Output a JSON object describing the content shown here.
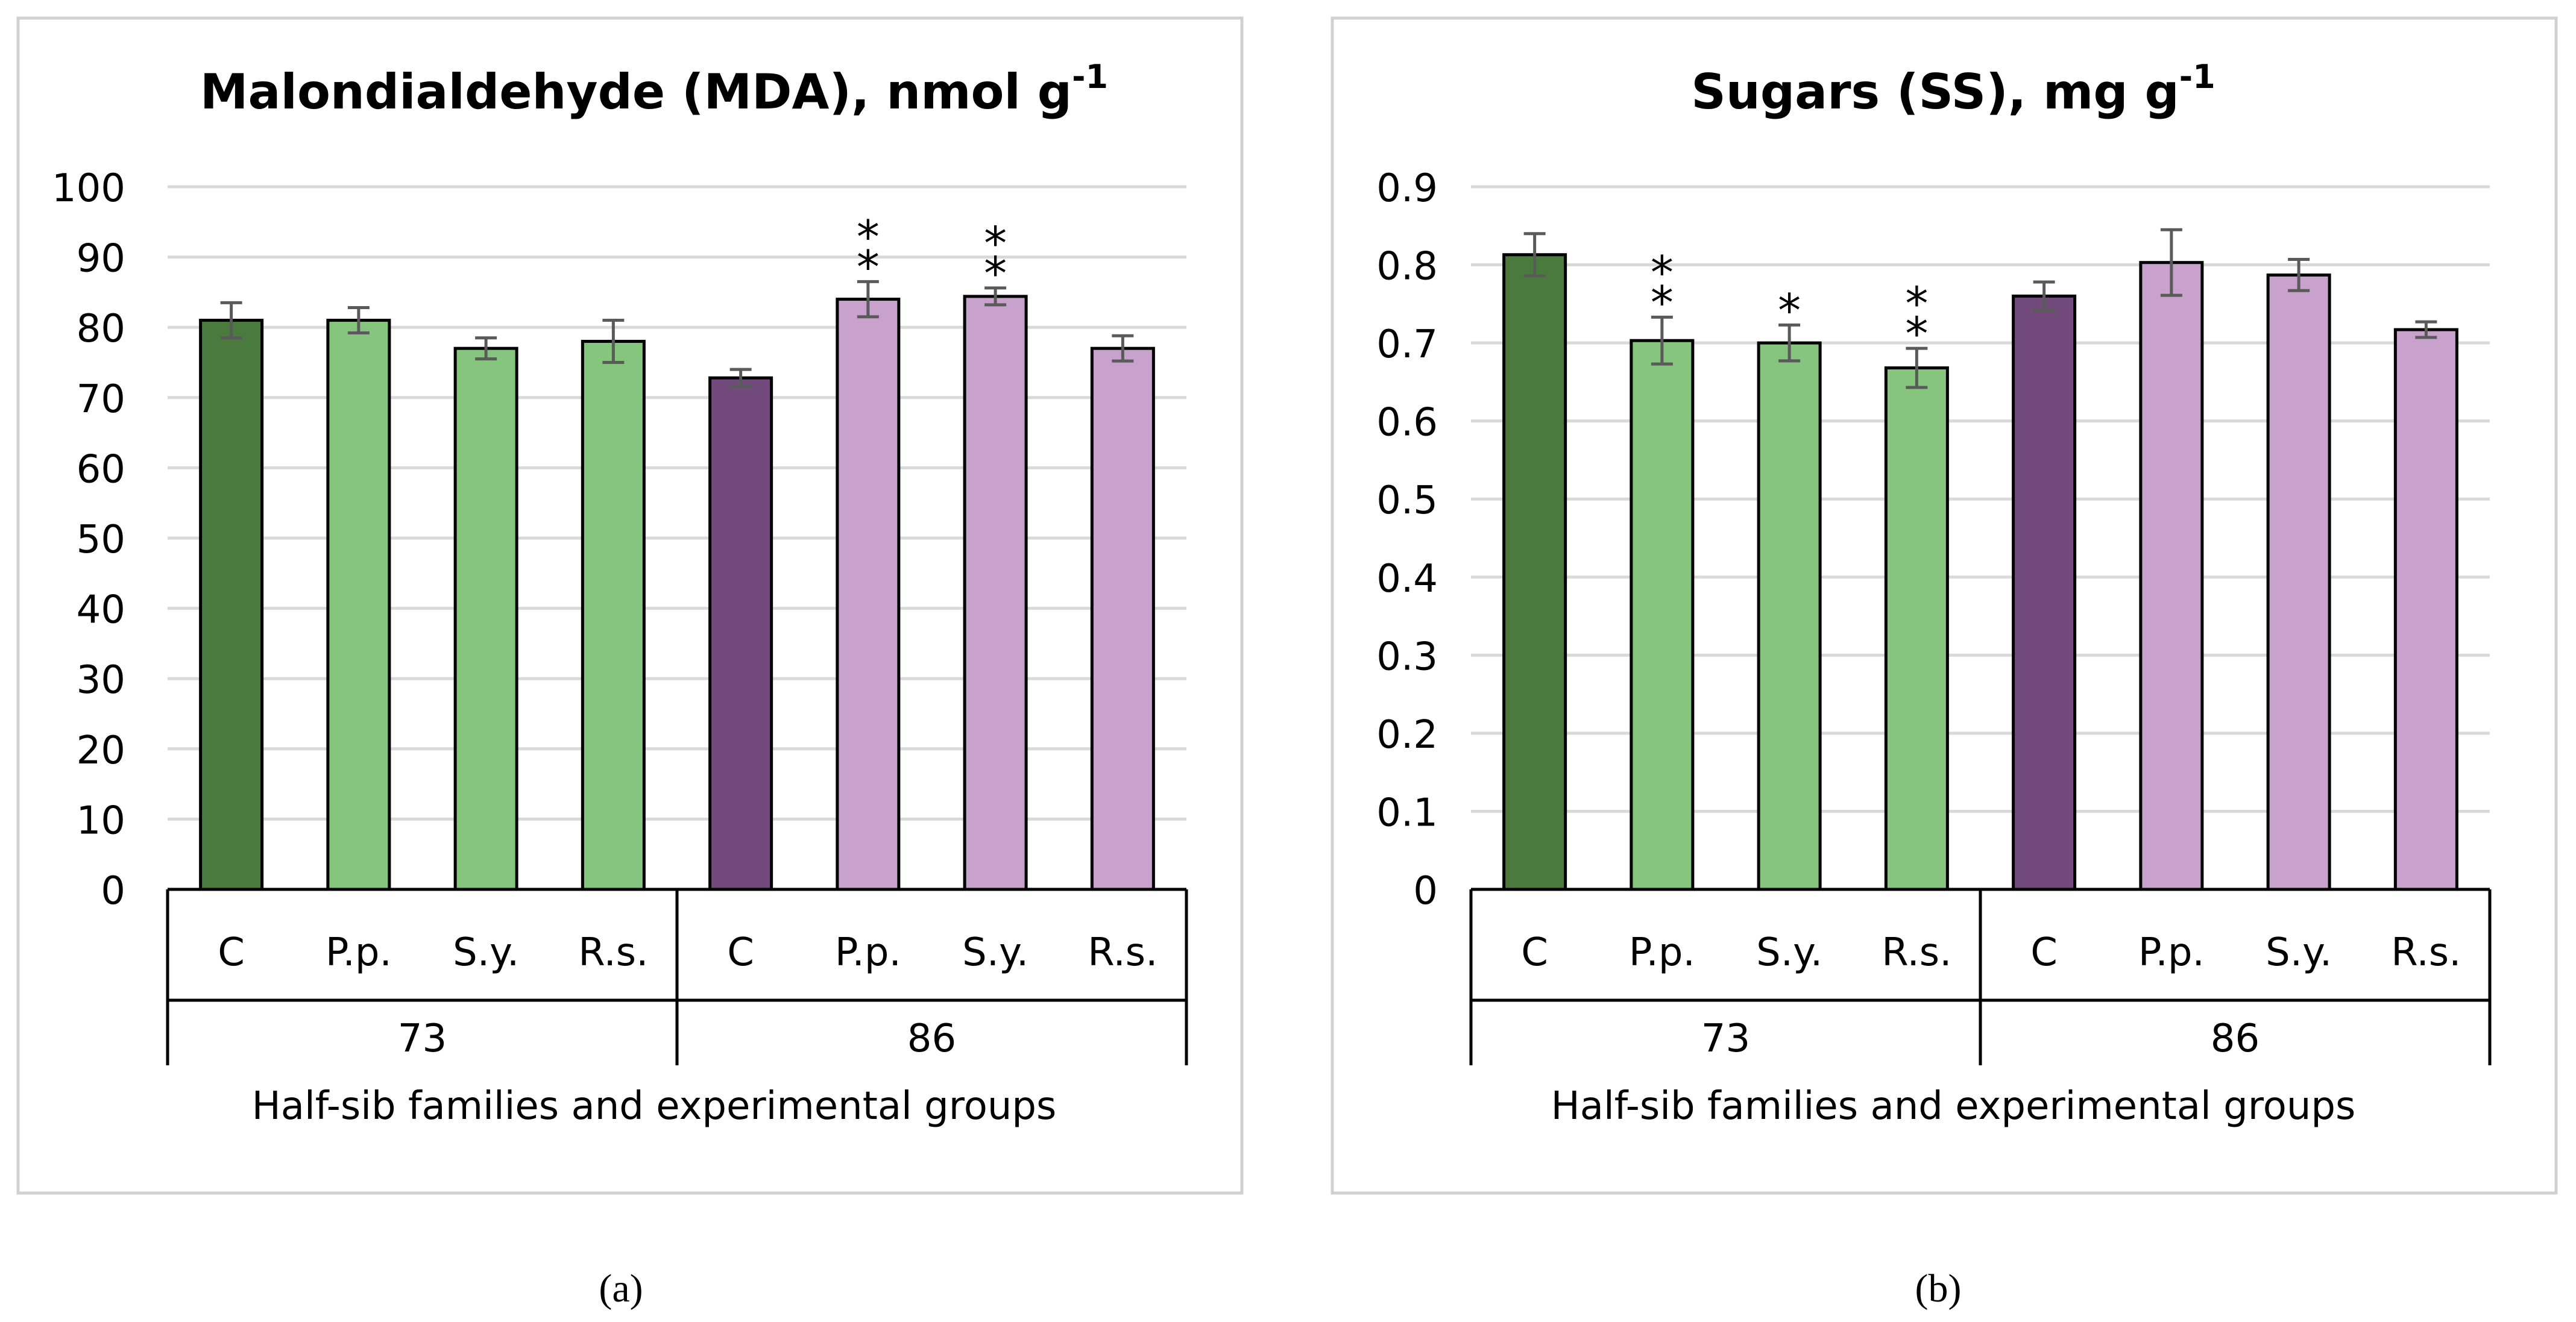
{
  "colors": {
    "green_dark": "#4a7a3e",
    "green_light": "#86c57d",
    "purple_dark": "#724a7c",
    "purple_light": "#c8a2cc",
    "gridline": "#d9d9d9",
    "errorbar": "#5a5a5a",
    "frame": "#d0d0d0",
    "axis": "#000000"
  },
  "chart_data": [
    {
      "type": "bar",
      "panel_label": "(a)",
      "title": {
        "text": "Malondialdehyde (MDA), nmol g",
        "sup": "-1"
      },
      "xlabel": "Half-sib families and experimental groups",
      "ylabel": "",
      "ylim": [
        0,
        100
      ],
      "yticks": [
        "0",
        "10",
        "20",
        "30",
        "40",
        "50",
        "60",
        "70",
        "80",
        "90",
        "100"
      ],
      "grid": true,
      "families": [
        {
          "label": "73",
          "categories": [
            "C",
            "P.p.",
            "S.y.",
            "R.s."
          ]
        },
        {
          "label": "86",
          "categories": [
            "C",
            "P.p.",
            "S.y.",
            "R.s."
          ]
        }
      ],
      "categories": [
        "C",
        "P.p.",
        "S.y.",
        "R.s.",
        "C",
        "P.p.",
        "S.y.",
        "R.s."
      ],
      "values": [
        81,
        81,
        77,
        78,
        72.8,
        84,
        84.4,
        77
      ],
      "errors": [
        2.5,
        1.8,
        1.5,
        3.0,
        1.2,
        2.5,
        1.2,
        1.8
      ],
      "significance": [
        "",
        "",
        "",
        "",
        "",
        "**",
        "**",
        ""
      ],
      "bar_colors": [
        "green_dark",
        "green_light",
        "green_light",
        "green_light",
        "purple_dark",
        "purple_light",
        "purple_light",
        "purple_light"
      ]
    },
    {
      "type": "bar",
      "panel_label": "(b)",
      "title": {
        "text": "Sugars (SS), mg g",
        "sup": "-1"
      },
      "xlabel": "Half-sib families and experimental groups",
      "ylabel": "",
      "ylim": [
        0,
        0.9
      ],
      "yticks": [
        "0",
        "0.1",
        "0.2",
        "0.3",
        "0.4",
        "0.5",
        "0.6",
        "0.7",
        "0.8",
        "0.9"
      ],
      "grid": true,
      "families": [
        {
          "label": "73",
          "categories": [
            "C",
            "P.p.",
            "S.y.",
            "R.s."
          ]
        },
        {
          "label": "86",
          "categories": [
            "C",
            "P.p.",
            "S.y.",
            "R.s."
          ]
        }
      ],
      "categories": [
        "C",
        "P.p.",
        "S.y.",
        "R.s.",
        "C",
        "P.p.",
        "S.y.",
        "R.s."
      ],
      "values": [
        0.813,
        0.703,
        0.7,
        0.668,
        0.76,
        0.803,
        0.787,
        0.717
      ],
      "errors": [
        0.027,
        0.03,
        0.023,
        0.025,
        0.018,
        0.042,
        0.02,
        0.01
      ],
      "significance": [
        "",
        "**",
        "*",
        "**",
        "",
        "",
        "",
        ""
      ],
      "bar_colors": [
        "green_dark",
        "green_light",
        "green_light",
        "green_light",
        "purple_dark",
        "purple_light",
        "purple_light",
        "purple_light"
      ]
    }
  ]
}
